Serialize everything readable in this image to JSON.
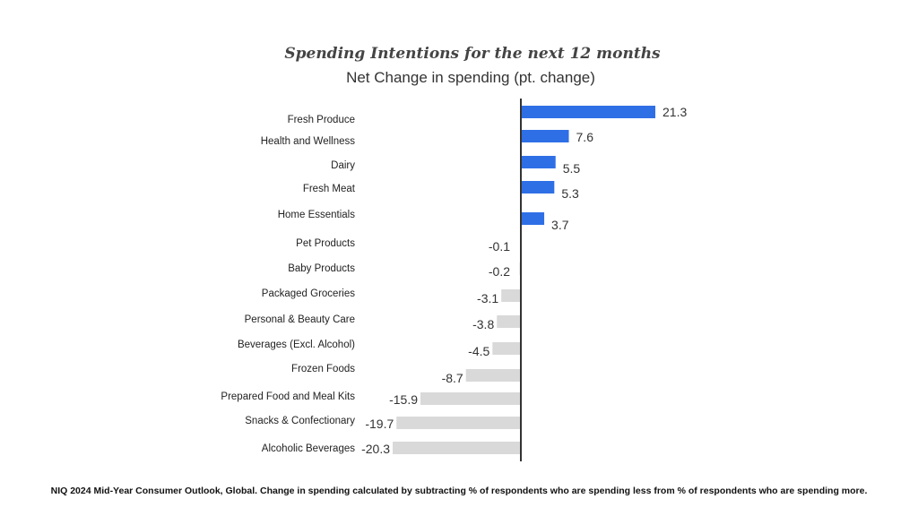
{
  "chart_data": {
    "type": "bar",
    "orientation": "horizontal",
    "title": "Spending Intentions for the next 12 months",
    "subtitle": "Net Change in spending (pt. change)",
    "categories": [
      "Fresh Produce",
      "Health and Wellness",
      "Dairy",
      "Fresh Meat",
      "Home Essentials",
      "Pet Products",
      "Baby Products",
      "Packaged Groceries",
      "Personal & Beauty Care",
      "Beverages (Excl. Alcohol)",
      "Frozen Foods",
      "Prepared Food and Meal Kits",
      "Snacks & Confectionary",
      "Alcoholic Beverages"
    ],
    "values": [
      21.3,
      7.6,
      5.5,
      5.3,
      3.7,
      -0.1,
      -0.2,
      -3.1,
      -3.8,
      -4.5,
      -8.7,
      -15.9,
      -19.7,
      -20.3
    ],
    "value_labels": [
      "21.3",
      "7.6",
      "5.5",
      "5.3",
      "3.7",
      "-0.1",
      "-0.2",
      "-3.1",
      "-3.8",
      "-4.5",
      "-8.7",
      "-15.9",
      "-19.7",
      "-20.3"
    ],
    "colors": {
      "positive": "#2f6fe6",
      "negative": "#d9d9d9",
      "axis": "#333333"
    },
    "grid": false,
    "legend": "none"
  },
  "footnote": "NIQ 2024 Mid-Year Consumer Outlook, Global. Change in spending calculated by subtracting % of respondents who are spending less from % of respondents who are spending more."
}
